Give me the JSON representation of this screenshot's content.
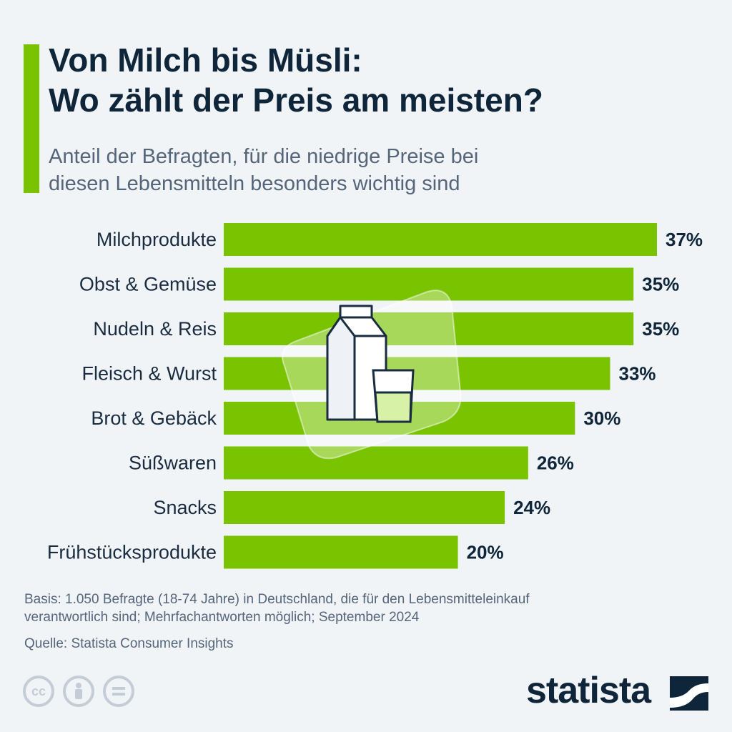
{
  "header": {
    "title_line1": "Von Milch bis Müsli:",
    "title_line2": "Wo zählt der Preis am meisten?",
    "subtitle_line1": "Anteil der Befragten, für die niedrige Preise bei",
    "subtitle_line2": "diesen Lebensmitteln besonders wichtig sind"
  },
  "chart_data": {
    "type": "bar",
    "orientation": "horizontal",
    "categories": [
      "Milchprodukte",
      "Obst & Gemüse",
      "Nudeln & Reis",
      "Fleisch & Wurst",
      "Brot & Gebäck",
      "Süßwaren",
      "Snacks",
      "Frühstücksprodukte"
    ],
    "values": [
      37,
      35,
      35,
      33,
      30,
      26,
      24,
      20
    ],
    "value_labels": [
      "37%",
      "35%",
      "35%",
      "33%",
      "30%",
      "26%",
      "24%",
      "20%"
    ],
    "title": "",
    "xlabel": "",
    "ylabel": "",
    "xlim": [
      0,
      37
    ],
    "grid": false,
    "bar_color": "#79c300"
  },
  "footer": {
    "basis_line1": "Basis: 1.050 Befragte (18-74 Jahre) in Deutschland, die für den Lebensmitteleinkauf",
    "basis_line2": "verantwortlich sind; Mehrfachantworten möglich; September 2024",
    "source": "Quelle: Statista Consumer Insights",
    "brand": "statista",
    "license_icons": [
      "cc-icon",
      "attribution-icon",
      "no-derivatives-icon"
    ]
  },
  "colors": {
    "accent": "#79c300",
    "background": "#f1f4f7",
    "text_dark": "#0f2539",
    "text_muted": "#55657a"
  }
}
